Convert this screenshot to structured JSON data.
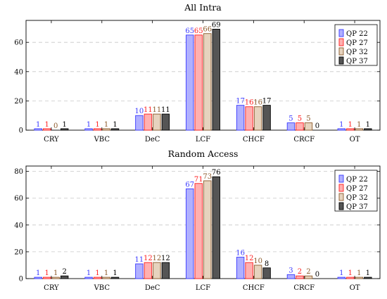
{
  "chart_data": [
    {
      "type": "bar",
      "title": "All Intra",
      "categories": [
        "CRY",
        "VBC",
        "DeC",
        "LCF",
        "CHCF",
        "CRCF",
        "OT"
      ],
      "ylim": [
        0,
        75
      ],
      "yticks": [
        0,
        20,
        40,
        60
      ],
      "grid": true,
      "legend_position": "top-right",
      "series": [
        {
          "name": "QP 22",
          "color": "#3a3aff",
          "fill": "#b0b0ff",
          "values": [
            1,
            1,
            10,
            65,
            17,
            5,
            1
          ]
        },
        {
          "name": "QP 27",
          "color": "#ff2020",
          "fill": "#ffb0b0",
          "values": [
            1,
            1,
            11,
            65,
            16,
            5,
            1
          ]
        },
        {
          "name": "QP 32",
          "color": "#8b5a2b",
          "fill": "#e6d3be",
          "values": [
            0,
            1,
            11,
            66,
            16,
            5,
            1
          ]
        },
        {
          "name": "QP 37",
          "color": "#000000",
          "fill": "#555555",
          "values": [
            1,
            1,
            11,
            69,
            17,
            0,
            1
          ]
        }
      ]
    },
    {
      "type": "bar",
      "title": "Random Access",
      "categories": [
        "CRY",
        "VBC",
        "DeC",
        "LCF",
        "CHCF",
        "CRCF",
        "OT"
      ],
      "ylim": [
        0,
        84
      ],
      "yticks": [
        0,
        20,
        40,
        60,
        80
      ],
      "grid": true,
      "legend_position": "top-right",
      "series": [
        {
          "name": "QP 22",
          "color": "#3a3aff",
          "fill": "#b0b0ff",
          "values": [
            1,
            1,
            11,
            67,
            16,
            3,
            1
          ]
        },
        {
          "name": "QP 27",
          "color": "#ff2020",
          "fill": "#ffb0b0",
          "values": [
            1,
            1,
            12,
            71,
            12,
            2,
            1
          ]
        },
        {
          "name": "QP 32",
          "color": "#8b5a2b",
          "fill": "#e6d3be",
          "values": [
            1,
            1,
            12,
            73,
            10,
            2,
            1
          ]
        },
        {
          "name": "QP 37",
          "color": "#000000",
          "fill": "#555555",
          "values": [
            2,
            1,
            12,
            76,
            8,
            0,
            1
          ]
        }
      ]
    }
  ]
}
